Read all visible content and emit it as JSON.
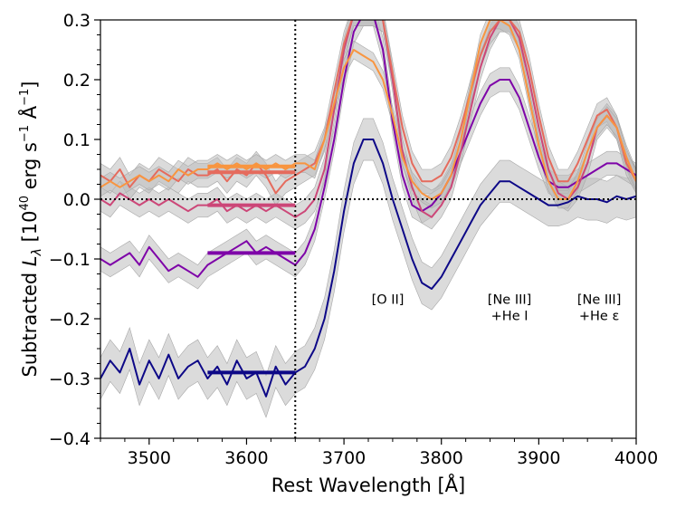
{
  "chart_data": {
    "type": "line",
    "title": "",
    "xlabel": "Rest Wavelength [Å]",
    "ylabel": {
      "prefix": "Subtracted ",
      "symbol": "L",
      "subscript": "λ",
      "unit_open": " [10",
      "unit_exp": "40",
      "unit_mid": " erg s",
      "unit_exp2": "−1",
      "unit_ang": " Å",
      "unit_exp3": "−1",
      "unit_close": "]"
    },
    "xlim": [
      3450,
      4000
    ],
    "ylim": [
      -0.4,
      0.3
    ],
    "xticks": [
      3500,
      3600,
      3700,
      3800,
      3900,
      4000
    ],
    "xtick_labels": [
      "3500",
      "3600",
      "3700",
      "3800",
      "3900",
      "4000"
    ],
    "yticks": [
      -0.4,
      -0.3,
      -0.2,
      -0.1,
      0.0,
      0.1,
      0.2,
      0.3
    ],
    "ytick_labels": [
      "−0.4",
      "−0.3",
      "−0.2",
      "−0.1",
      "0.0",
      "0.1",
      "0.2",
      "0.3"
    ],
    "reference_lines": {
      "vertical_x": 3650,
      "horizontal_y": 0.0
    },
    "annotations": [
      {
        "lines": [
          "[O II]"
        ],
        "x": 3745,
        "y": -0.19
      },
      {
        "lines": [
          "[Ne III]",
          "+He I"
        ],
        "x": 3870,
        "y": -0.19
      },
      {
        "lines": [
          "[Ne III]",
          "+He ε"
        ],
        "x": 3962,
        "y": -0.19
      }
    ],
    "series": [
      {
        "name": "navy",
        "color": "#0d0887",
        "level": -0.29,
        "band": 0.035,
        "x": [
          3450,
          3460,
          3470,
          3480,
          3490,
          3500,
          3510,
          3520,
          3530,
          3540,
          3550,
          3560,
          3570,
          3580,
          3590,
          3600,
          3610,
          3620,
          3630,
          3640,
          3650,
          3660,
          3670,
          3680,
          3690,
          3700,
          3710,
          3720,
          3730,
          3740,
          3750,
          3760,
          3770,
          3780,
          3790,
          3800,
          3810,
          3820,
          3830,
          3840,
          3850,
          3860,
          3870,
          3880,
          3890,
          3900,
          3910,
          3920,
          3930,
          3940,
          3950,
          3960,
          3970,
          3980,
          3990,
          4000
        ],
        "y": [
          -0.3,
          -0.27,
          -0.29,
          -0.25,
          -0.31,
          -0.27,
          -0.3,
          -0.26,
          -0.3,
          -0.28,
          -0.27,
          -0.3,
          -0.28,
          -0.31,
          -0.27,
          -0.3,
          -0.29,
          -0.33,
          -0.28,
          -0.31,
          -0.29,
          -0.28,
          -0.25,
          -0.2,
          -0.12,
          -0.02,
          0.06,
          0.1,
          0.1,
          0.06,
          0.0,
          -0.05,
          -0.1,
          -0.14,
          -0.15,
          -0.13,
          -0.1,
          -0.07,
          -0.04,
          -0.01,
          0.01,
          0.03,
          0.03,
          0.02,
          0.01,
          0.0,
          -0.01,
          -0.01,
          -0.005,
          0.005,
          0.0,
          0.0,
          -0.005,
          0.005,
          0.0,
          0.005
        ]
      },
      {
        "name": "purple",
        "color": "#7e03a8",
        "level": -0.09,
        "band": 0.02,
        "x": [
          3450,
          3460,
          3470,
          3480,
          3490,
          3500,
          3510,
          3520,
          3530,
          3540,
          3550,
          3560,
          3570,
          3580,
          3590,
          3600,
          3610,
          3620,
          3630,
          3640,
          3650,
          3660,
          3670,
          3680,
          3690,
          3700,
          3710,
          3720,
          3730,
          3740,
          3750,
          3760,
          3770,
          3780,
          3790,
          3800,
          3810,
          3820,
          3830,
          3840,
          3850,
          3860,
          3870,
          3880,
          3890,
          3900,
          3910,
          3920,
          3930,
          3940,
          3950,
          3960,
          3970,
          3980,
          3990,
          4000
        ],
        "y": [
          -0.1,
          -0.11,
          -0.1,
          -0.09,
          -0.11,
          -0.08,
          -0.1,
          -0.12,
          -0.11,
          -0.12,
          -0.13,
          -0.11,
          -0.1,
          -0.09,
          -0.08,
          -0.07,
          -0.09,
          -0.08,
          -0.09,
          -0.1,
          -0.11,
          -0.09,
          -0.05,
          0.02,
          0.1,
          0.2,
          0.28,
          0.31,
          0.31,
          0.25,
          0.13,
          0.04,
          -0.01,
          -0.02,
          -0.01,
          0.01,
          0.04,
          0.08,
          0.12,
          0.16,
          0.19,
          0.2,
          0.2,
          0.17,
          0.12,
          0.07,
          0.03,
          0.02,
          0.02,
          0.03,
          0.04,
          0.05,
          0.06,
          0.06,
          0.05,
          0.04
        ]
      },
      {
        "name": "magenta",
        "color": "#cc4778",
        "level": -0.01,
        "band": 0.02,
        "x": [
          3450,
          3460,
          3470,
          3480,
          3490,
          3500,
          3510,
          3520,
          3530,
          3540,
          3550,
          3560,
          3570,
          3580,
          3590,
          3600,
          3610,
          3620,
          3630,
          3640,
          3650,
          3660,
          3670,
          3680,
          3690,
          3700,
          3710,
          3720,
          3730,
          3740,
          3750,
          3760,
          3770,
          3780,
          3790,
          3800,
          3810,
          3820,
          3830,
          3840,
          3850,
          3860,
          3870,
          3880,
          3890,
          3900,
          3910,
          3920,
          3930,
          3940,
          3950,
          3960,
          3970,
          3980,
          3990,
          4000
        ],
        "y": [
          0.0,
          -0.01,
          0.01,
          0.0,
          -0.01,
          0.0,
          -0.01,
          0.0,
          -0.01,
          -0.02,
          -0.01,
          -0.01,
          0.0,
          -0.02,
          -0.01,
          -0.02,
          -0.01,
          -0.02,
          -0.01,
          -0.02,
          -0.03,
          -0.02,
          0.0,
          0.05,
          0.15,
          0.25,
          0.31,
          0.31,
          0.31,
          0.3,
          0.2,
          0.08,
          0.02,
          -0.02,
          -0.03,
          -0.01,
          0.02,
          0.08,
          0.15,
          0.22,
          0.27,
          0.3,
          0.3,
          0.27,
          0.2,
          0.12,
          0.05,
          0.01,
          0.0,
          0.02,
          0.06,
          0.12,
          0.14,
          0.12,
          0.07,
          0.03
        ]
      },
      {
        "name": "salmon",
        "color": "#e56b5d",
        "level": 0.045,
        "band": 0.02,
        "x": [
          3450,
          3460,
          3470,
          3480,
          3490,
          3500,
          3510,
          3520,
          3530,
          3540,
          3550,
          3560,
          3570,
          3580,
          3590,
          3600,
          3610,
          3620,
          3630,
          3640,
          3650,
          3660,
          3670,
          3680,
          3690,
          3700,
          3710,
          3720,
          3730,
          3740,
          3750,
          3760,
          3770,
          3780,
          3790,
          3800,
          3810,
          3820,
          3830,
          3840,
          3850,
          3860,
          3870,
          3880,
          3890,
          3900,
          3910,
          3920,
          3930,
          3940,
          3950,
          3960,
          3970,
          3980,
          3990,
          4000
        ],
        "y": [
          0.04,
          0.03,
          0.05,
          0.02,
          0.04,
          0.03,
          0.05,
          0.04,
          0.03,
          0.05,
          0.04,
          0.04,
          0.05,
          0.03,
          0.05,
          0.04,
          0.06,
          0.04,
          0.01,
          0.03,
          0.04,
          0.05,
          0.06,
          0.1,
          0.18,
          0.26,
          0.31,
          0.31,
          0.31,
          0.3,
          0.21,
          0.12,
          0.06,
          0.03,
          0.03,
          0.04,
          0.07,
          0.12,
          0.18,
          0.24,
          0.28,
          0.3,
          0.3,
          0.28,
          0.22,
          0.14,
          0.07,
          0.03,
          0.03,
          0.06,
          0.1,
          0.14,
          0.15,
          0.12,
          0.06,
          0.03
        ]
      },
      {
        "name": "orange",
        "color": "#f89540",
        "level": 0.055,
        "band": 0.015,
        "x": [
          3450,
          3460,
          3470,
          3480,
          3490,
          3500,
          3510,
          3520,
          3530,
          3540,
          3550,
          3560,
          3570,
          3580,
          3590,
          3600,
          3610,
          3620,
          3630,
          3640,
          3650,
          3660,
          3670,
          3680,
          3690,
          3700,
          3710,
          3720,
          3730,
          3740,
          3750,
          3760,
          3770,
          3780,
          3790,
          3800,
          3810,
          3820,
          3830,
          3840,
          3850,
          3860,
          3870,
          3880,
          3890,
          3900,
          3910,
          3920,
          3930,
          3940,
          3950,
          3960,
          3970,
          3980,
          3990,
          4000
        ],
        "y": [
          0.02,
          0.03,
          0.02,
          0.03,
          0.04,
          0.03,
          0.04,
          0.03,
          0.05,
          0.04,
          0.05,
          0.05,
          0.06,
          0.05,
          0.06,
          0.05,
          0.06,
          0.05,
          0.06,
          0.05,
          0.06,
          0.06,
          0.05,
          0.1,
          0.16,
          0.22,
          0.25,
          0.24,
          0.23,
          0.2,
          0.14,
          0.07,
          0.03,
          0.01,
          0.0,
          0.01,
          0.04,
          0.1,
          0.18,
          0.26,
          0.3,
          0.3,
          0.29,
          0.25,
          0.17,
          0.09,
          0.03,
          0.0,
          0.0,
          0.03,
          0.08,
          0.12,
          0.14,
          0.12,
          0.07,
          0.03
        ]
      }
    ]
  }
}
